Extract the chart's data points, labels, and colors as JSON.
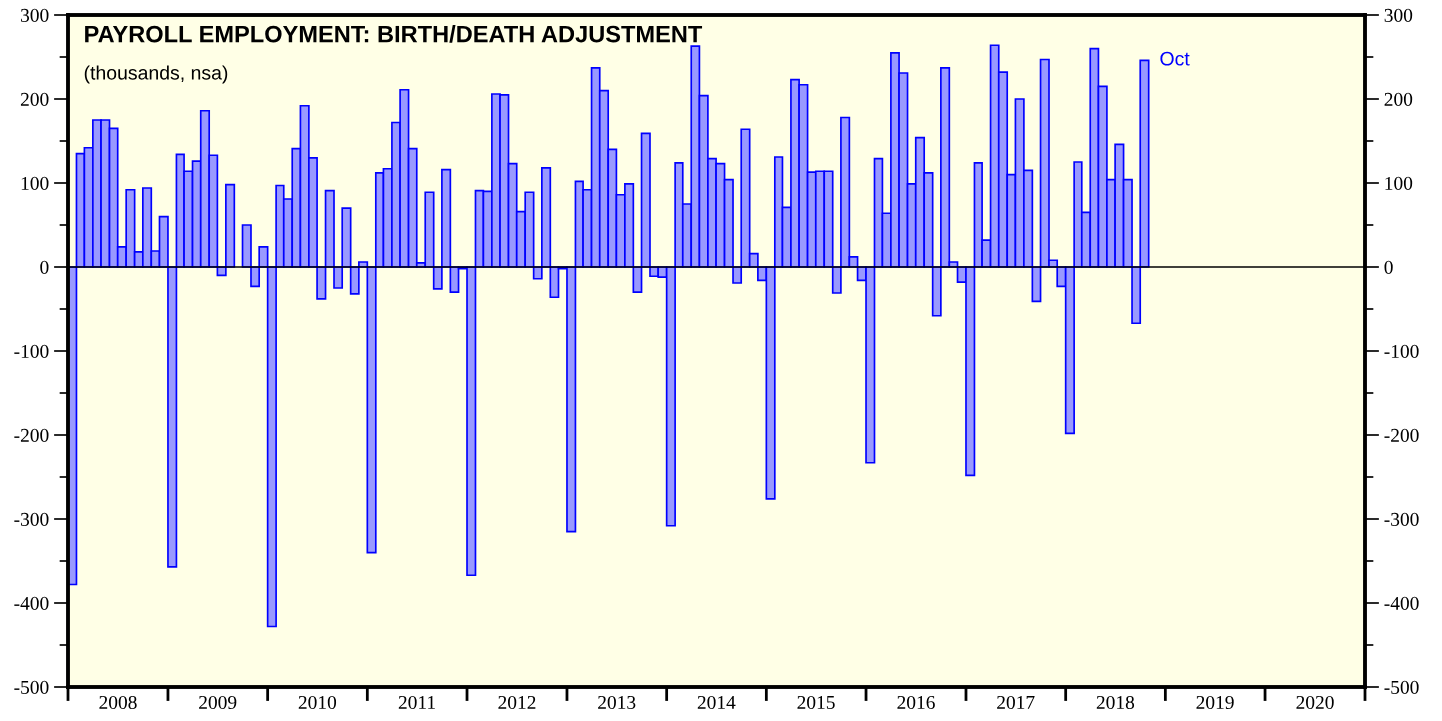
{
  "chart_data": {
    "type": "bar",
    "title": "PAYROLL EMPLOYMENT: BIRTH/DEATH ADJUSTMENT",
    "subtitle": "(thousands, nsa)",
    "x": [
      "2008-01",
      "2008-02",
      "2008-03",
      "2008-04",
      "2008-05",
      "2008-06",
      "2008-07",
      "2008-08",
      "2008-09",
      "2008-10",
      "2008-11",
      "2008-12",
      "2009-01",
      "2009-02",
      "2009-03",
      "2009-04",
      "2009-05",
      "2009-06",
      "2009-07",
      "2009-08",
      "2009-09",
      "2009-10",
      "2009-11",
      "2009-12",
      "2010-01",
      "2010-02",
      "2010-03",
      "2010-04",
      "2010-05",
      "2010-06",
      "2010-07",
      "2010-08",
      "2010-09",
      "2010-10",
      "2010-11",
      "2010-12",
      "2011-01",
      "2011-02",
      "2011-03",
      "2011-04",
      "2011-05",
      "2011-06",
      "2011-07",
      "2011-08",
      "2011-09",
      "2011-10",
      "2011-11",
      "2011-12",
      "2012-01",
      "2012-02",
      "2012-03",
      "2012-04",
      "2012-05",
      "2012-06",
      "2012-07",
      "2012-08",
      "2012-09",
      "2012-10",
      "2012-11",
      "2012-12",
      "2013-01",
      "2013-02",
      "2013-03",
      "2013-04",
      "2013-05",
      "2013-06",
      "2013-07",
      "2013-08",
      "2013-09",
      "2013-10",
      "2013-11",
      "2013-12",
      "2014-01",
      "2014-02",
      "2014-03",
      "2014-04",
      "2014-05",
      "2014-06",
      "2014-07",
      "2014-08",
      "2014-09",
      "2014-10",
      "2014-11",
      "2014-12",
      "2015-01",
      "2015-02",
      "2015-03",
      "2015-04",
      "2015-05",
      "2015-06",
      "2015-07",
      "2015-08",
      "2015-09",
      "2015-10",
      "2015-11",
      "2015-12",
      "2016-01",
      "2016-02",
      "2016-03",
      "2016-04",
      "2016-05",
      "2016-06",
      "2016-07",
      "2016-08",
      "2016-09",
      "2016-10",
      "2016-11",
      "2016-12",
      "2017-01",
      "2017-02",
      "2017-03",
      "2017-04",
      "2017-05",
      "2017-06",
      "2017-07",
      "2017-08",
      "2017-09",
      "2017-10",
      "2017-11",
      "2017-12",
      "2018-01",
      "2018-02",
      "2018-03",
      "2018-04",
      "2018-05",
      "2018-06",
      "2018-07",
      "2018-08",
      "2018-09",
      "2018-10"
    ],
    "series": [
      {
        "color": "#9999ff",
        "values": [
          -378,
          135,
          142,
          175,
          175,
          165,
          24,
          92,
          18,
          94,
          19,
          60,
          -357,
          134,
          114,
          126,
          186,
          133,
          -10,
          98,
          null,
          50,
          -23,
          24,
          -428,
          97,
          81,
          141,
          192,
          130,
          -38,
          91,
          -25,
          70,
          -32,
          6,
          -340,
          112,
          117,
          172,
          211,
          141,
          5,
          89,
          -26,
          116,
          -30,
          -2,
          -367,
          91,
          90,
          206,
          205,
          123,
          66,
          89,
          -14,
          118,
          -36,
          -2,
          -315,
          102,
          92,
          237,
          210,
          140,
          86,
          99,
          -30,
          159,
          -11,
          -12,
          -308,
          124,
          75,
          263,
          204,
          129,
          123,
          104,
          -19,
          164,
          16,
          -16,
          -276,
          131,
          71,
          223,
          217,
          113,
          114,
          114,
          -31,
          178,
          12,
          -16,
          -233,
          129,
          64,
          255,
          231,
          99,
          154,
          112,
          -58,
          237,
          6,
          -18,
          -248,
          124,
          32,
          264,
          232,
          110,
          200,
          115,
          -41,
          247,
          8,
          -23,
          -198,
          125,
          65,
          260,
          215,
          104,
          146,
          104,
          -67,
          246
        ]
      }
    ],
    "xlim": [
      "2008-01-01",
      "2021-01-01"
    ],
    "xticks": [
      {
        "value": "2008-01-01",
        "label": null
      },
      {
        "value": "2008-07-02",
        "label": "2008"
      },
      {
        "value": "2009-01-01",
        "label": null
      },
      {
        "value": "2009-07-02",
        "label": "2009"
      },
      {
        "value": "2010-01-01",
        "label": null
      },
      {
        "value": "2010-07-02",
        "label": "2010"
      },
      {
        "value": "2011-01-01",
        "label": null
      },
      {
        "value": "2011-07-02",
        "label": "2011"
      },
      {
        "value": "2012-01-01",
        "label": null
      },
      {
        "value": "2012-07-02",
        "label": "2012"
      },
      {
        "value": "2013-01-01",
        "label": null
      },
      {
        "value": "2013-07-02",
        "label": "2013"
      },
      {
        "value": "2014-01-01",
        "label": null
      },
      {
        "value": "2014-07-02",
        "label": "2014"
      },
      {
        "value": "2015-01-01",
        "label": null
      },
      {
        "value": "2015-07-02",
        "label": "2015"
      },
      {
        "value": "2016-01-01",
        "label": null
      },
      {
        "value": "2016-07-02",
        "label": "2016"
      },
      {
        "value": "2017-01-01",
        "label": null
      },
      {
        "value": "2017-07-02",
        "label": "2017"
      },
      {
        "value": "2018-01-01",
        "label": null
      },
      {
        "value": "2018-07-02",
        "label": "2018"
      },
      {
        "value": "2019-01-01",
        "label": null
      },
      {
        "value": "2019-07-02",
        "label": "2019"
      },
      {
        "value": "2020-01-01",
        "label": null
      },
      {
        "value": "2020-07-02",
        "label": "2020"
      },
      {
        "value": "2021-01-01",
        "label": null
      }
    ],
    "ylim": [
      -500,
      300
    ],
    "yticks": [
      -500,
      {
        "value": -450,
        "label": null
      },
      -400,
      {
        "value": -350,
        "label": null
      },
      -300,
      {
        "value": -250,
        "label": null
      },
      -200,
      {
        "value": -150,
        "label": null
      },
      -100,
      {
        "value": -50,
        "label": null
      },
      0,
      {
        "value": 50,
        "label": null
      },
      100,
      {
        "value": 150,
        "label": null
      },
      200,
      {
        "value": 250,
        "label": null
      },
      300
    ],
    "y2lim": [
      -500,
      300
    ],
    "y2ticks": [
      -500,
      {
        "value": -450,
        "label": null
      },
      -400,
      {
        "value": -350,
        "label": null
      },
      -300,
      {
        "value": -250,
        "label": null
      },
      -200,
      {
        "value": -150,
        "label": null
      },
      -100,
      {
        "value": -50,
        "label": null
      },
      0,
      {
        "value": 50,
        "label": null
      },
      100,
      {
        "value": 150,
        "label": null
      },
      200,
      {
        "value": 250,
        "label": null
      },
      300
    ],
    "ref_lines": [
      {
        "axis": "y",
        "value": 0,
        "color": "#000000"
      }
    ],
    "annotations": [
      {
        "text": "Oct",
        "x": "2018-10",
        "y": 246
      }
    ],
    "grid": false,
    "legend": false
  }
}
